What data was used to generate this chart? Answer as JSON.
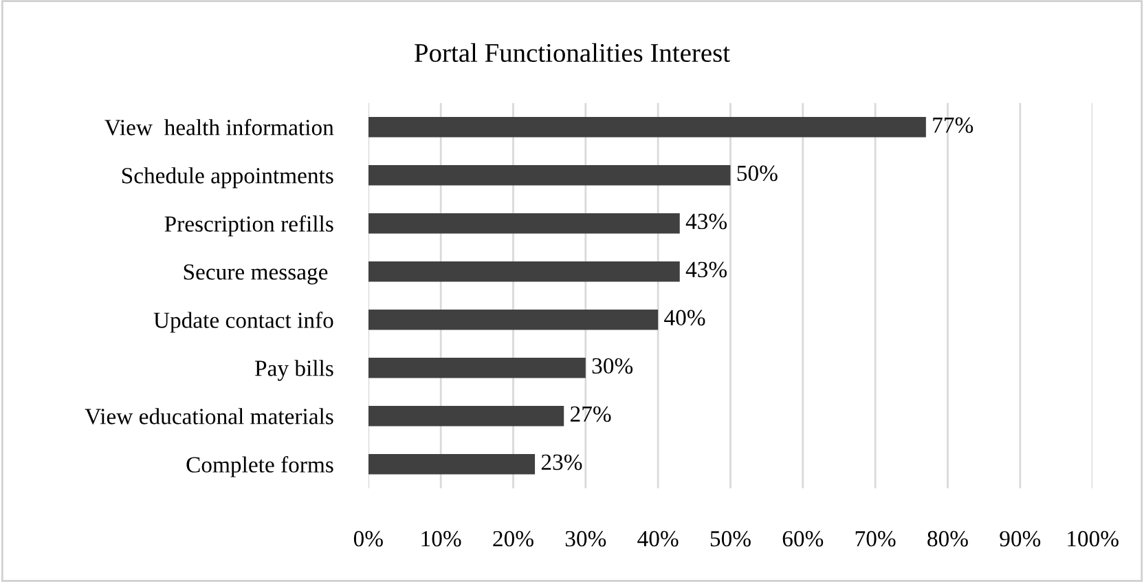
{
  "chart_data": {
    "type": "bar",
    "orientation": "horizontal",
    "title": "Portal Functionalities Interest",
    "categories": [
      "View  health information",
      "Schedule appointments",
      "Prescription refills",
      "Secure message ",
      "Update contact info",
      "Pay bills",
      "View educational materials",
      "Complete forms"
    ],
    "values": [
      77,
      50,
      43,
      43,
      40,
      30,
      27,
      23
    ],
    "value_labels": [
      "77%",
      "50%",
      "43%",
      "43%",
      "40%",
      "30%",
      "27%",
      "23%"
    ],
    "color": "#404040",
    "xlim": [
      0,
      100
    ],
    "xticks": [
      {
        "value": 0,
        "label": "0%"
      },
      {
        "value": 10,
        "label": "10%"
      },
      {
        "value": 20,
        "label": "20%"
      },
      {
        "value": 30,
        "label": "30%"
      },
      {
        "value": 40,
        "label": "40%"
      },
      {
        "value": 50,
        "label": "50%"
      },
      {
        "value": 60,
        "label": "60%"
      },
      {
        "value": 70,
        "label": "70%"
      },
      {
        "value": 80,
        "label": "80%"
      },
      {
        "value": 90,
        "label": "90%"
      },
      {
        "value": 100,
        "label": "100%"
      }
    ],
    "grid": "x",
    "legend": false
  }
}
